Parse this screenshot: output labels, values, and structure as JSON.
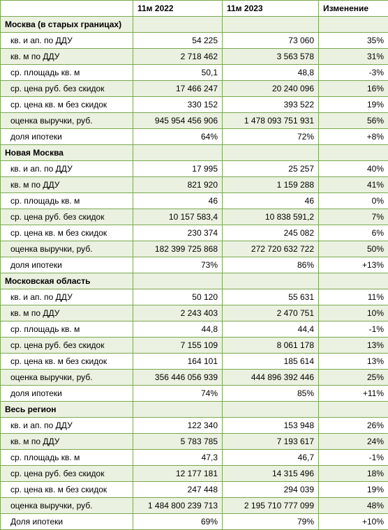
{
  "colors": {
    "border": "#7aa84f",
    "band": "#eaf1e0",
    "bg": "#ffffff",
    "text": "#000000"
  },
  "header": {
    "blank": "",
    "col1": "11м 2022",
    "col2": "11м 2023",
    "col3": "Изменение"
  },
  "sections": [
    {
      "title": "Москва (в старых границах)",
      "rows": [
        {
          "label": "кв. и ап. по ДДУ",
          "v1": "54 225",
          "v2": "73 060",
          "chg": "35%"
        },
        {
          "label": "кв. м по ДДУ",
          "v1": "2 718 462",
          "v2": "3 563 578",
          "chg": "31%"
        },
        {
          "label": "ср. площадь кв. м",
          "v1": "50,1",
          "v2": "48,8",
          "chg": "-3%"
        },
        {
          "label": "ср. цена руб. без скидок",
          "v1": "17 466 247",
          "v2": "20 240 096",
          "chg": "16%"
        },
        {
          "label": "ср. цена кв. м без скидок",
          "v1": "330 152",
          "v2": "393 522",
          "chg": "19%"
        },
        {
          "label": "оценка выручки, руб.",
          "v1": "945 954 456 906",
          "v2": "1 478 093 751 931",
          "chg": "56%"
        },
        {
          "label": "доля ипотеки",
          "v1": "64%",
          "v2": "72%",
          "chg": "+8%"
        }
      ]
    },
    {
      "title": "Новая Москва",
      "rows": [
        {
          "label": "кв. и ап. по ДДУ",
          "v1": "17 995",
          "v2": "25 257",
          "chg": "40%"
        },
        {
          "label": "кв. м по ДДУ",
          "v1": "821 920",
          "v2": "1 159 288",
          "chg": "41%"
        },
        {
          "label": "ср. площадь кв. м",
          "v1": "46",
          "v2": "46",
          "chg": "0%"
        },
        {
          "label": "ср. цена руб. без скидок",
          "v1": "10 157 583,4",
          "v2": "10 838 591,2",
          "chg": "7%"
        },
        {
          "label": "ср. цена кв. м без скидок",
          "v1": "230 374",
          "v2": "245 082",
          "chg": "6%"
        },
        {
          "label": "оценка выручки, руб.",
          "v1": "182 399 725 868",
          "v2": "272 720 632 722",
          "chg": "50%"
        },
        {
          "label": "доля ипотеки",
          "v1": "73%",
          "v2": "86%",
          "chg": "+13%"
        }
      ]
    },
    {
      "title": "Московская область",
      "rows": [
        {
          "label": "кв. и ап. по ДДУ",
          "v1": "50 120",
          "v2": "55 631",
          "chg": "11%"
        },
        {
          "label": "кв. м по ДДУ",
          "v1": "2 243 403",
          "v2": "2 470 751",
          "chg": "10%"
        },
        {
          "label": "ср. площадь кв. м",
          "v1": "44,8",
          "v2": "44,4",
          "chg": "-1%"
        },
        {
          "label": "ср. цена руб. без скидок",
          "v1": "7 155 109",
          "v2": "8 061 178",
          "chg": "13%"
        },
        {
          "label": "ср. цена кв. м без скидок",
          "v1": "164 101",
          "v2": "185 614",
          "chg": "13%"
        },
        {
          "label": "оценка выручки, руб.",
          "v1": "356 446 056 939",
          "v2": "444 896 392 446",
          "chg": "25%"
        },
        {
          "label": "доля ипотеки",
          "v1": "74%",
          "v2": "85%",
          "chg": "+11%"
        }
      ]
    },
    {
      "title": "Весь регион",
      "rows": [
        {
          "label": "кв. и ап. по ДДУ",
          "v1": "122 340",
          "v2": "153 948",
          "chg": "26%"
        },
        {
          "label": "кв. м по ДДУ",
          "v1": "5 783 785",
          "v2": "7 193 617",
          "chg": "24%"
        },
        {
          "label": "ср. площадь кв. м",
          "v1": "47,3",
          "v2": "46,7",
          "chg": "-1%"
        },
        {
          "label": "ср. цена руб. без скидок",
          "v1": "12 177 181",
          "v2": "14 315 496",
          "chg": "18%"
        },
        {
          "label": "ср. цена кв. м без скидок",
          "v1": "247 448",
          "v2": "294 039",
          "chg": "19%"
        },
        {
          "label": "оценка выручки, руб.",
          "v1": "1 484 800 239 713",
          "v2": "2 195 710 777 099",
          "chg": "48%"
        },
        {
          "label": "Доля ипотеки",
          "v1": "69%",
          "v2": "79%",
          "chg": "+10%"
        }
      ]
    }
  ]
}
